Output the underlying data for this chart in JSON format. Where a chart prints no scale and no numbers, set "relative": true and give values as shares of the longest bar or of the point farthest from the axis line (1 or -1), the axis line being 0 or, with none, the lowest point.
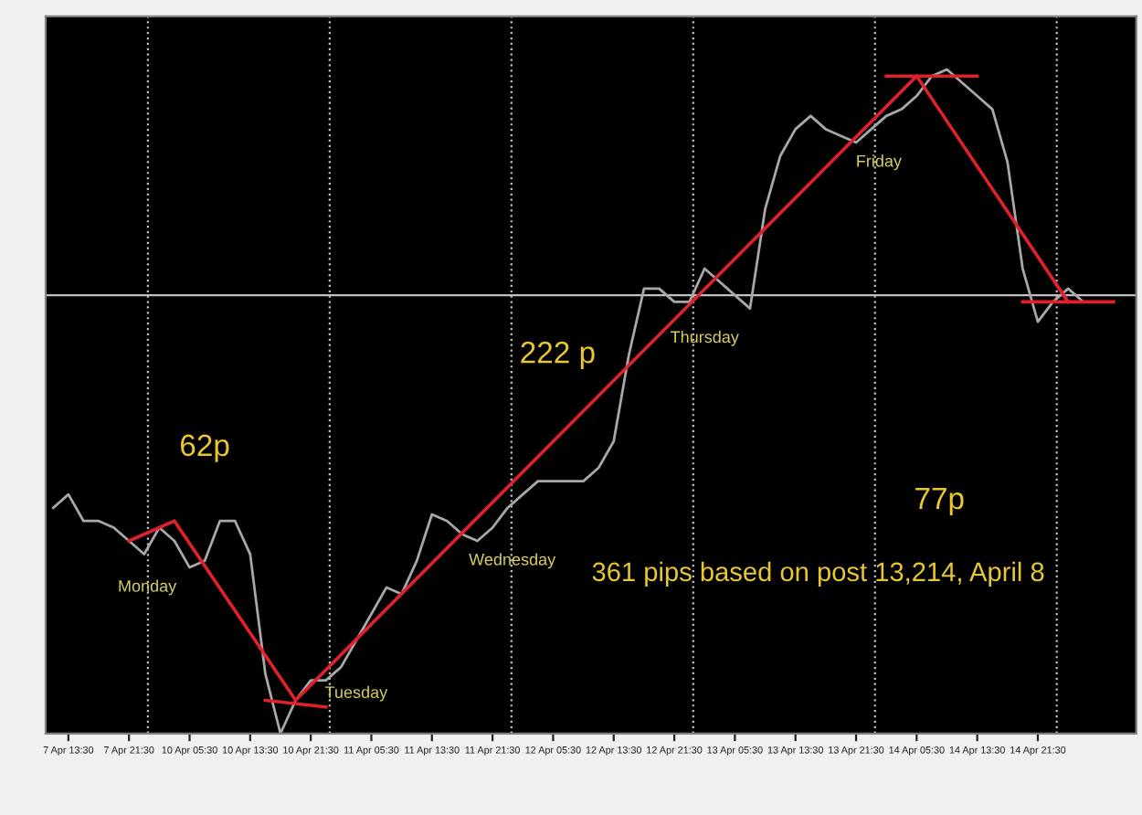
{
  "chart_data": {
    "type": "line",
    "relative": true,
    "tick_labels": "x",
    "grid": false,
    "legend": false,
    "marker": "none",
    "line_style": "solid",
    "categories": [
      null,
      "7 Apr 13:30",
      null,
      null,
      null,
      "7 Apr 21:30",
      null,
      null,
      null,
      "10 Apr 05:30",
      null,
      null,
      null,
      "10 Apr 13:30",
      null,
      null,
      null,
      "10 Apr 21:30",
      null,
      null,
      null,
      "11 Apr 05:30",
      null,
      null,
      null,
      "11 Apr 13:30",
      null,
      null,
      null,
      "11 Apr 21:30",
      null,
      null,
      null,
      "12 Apr 05:30",
      null,
      null,
      null,
      "12 Apr 13:30",
      null,
      null,
      null,
      "12 Apr 21:30",
      null,
      null,
      null,
      "13 Apr 05:30",
      null,
      null,
      null,
      "13 Apr 13:30",
      null,
      null,
      null,
      "13 Apr 21:30",
      null,
      null,
      null,
      "14 Apr 05:30",
      null,
      null,
      null,
      "14 Apr 13:30",
      null,
      null,
      null,
      "14 Apr 21:30",
      null,
      null,
      null,
      null,
      null,
      null
    ],
    "series": [
      {
        "color": "#a8a8a8",
        "values": [
          0.34,
          0.36,
          0.32,
          0.32,
          0.31,
          0.29,
          0.27,
          0.31,
          0.29,
          0.25,
          0.26,
          0.32,
          0.32,
          0.27,
          0.09,
          0.0,
          0.05,
          0.08,
          0.08,
          0.1,
          0.14,
          0.18,
          0.22,
          0.21,
          0.26,
          0.33,
          0.32,
          0.3,
          0.29,
          0.31,
          0.34,
          0.36,
          0.38,
          0.38,
          0.38,
          0.38,
          0.4,
          0.44,
          0.57,
          0.67,
          0.67,
          0.65,
          0.65,
          0.7,
          0.68,
          0.66,
          0.64,
          0.79,
          0.87,
          0.91,
          0.93,
          0.91,
          0.9,
          0.89,
          0.91,
          0.93,
          0.94,
          0.96,
          0.99,
          1.0,
          0.98,
          0.96,
          0.94,
          0.86,
          0.7,
          0.62,
          0.65,
          0.67,
          0.65,
          null,
          null,
          null
        ]
      },
      {
        "color": "#e0202a",
        "values": [
          null,
          null,
          null,
          null,
          null,
          0.29,
          null,
          null,
          0.32,
          null,
          null,
          null,
          null,
          null,
          null,
          null,
          0.05,
          null,
          null,
          null,
          null,
          null,
          null,
          null,
          null,
          null,
          null,
          null,
          null,
          null,
          null,
          null,
          null,
          null,
          null,
          null,
          null,
          null,
          null,
          null,
          null,
          null,
          null,
          null,
          null,
          null,
          null,
          null,
          null,
          null,
          null,
          null,
          null,
          null,
          null,
          null,
          null,
          0.99,
          null,
          null,
          null,
          null,
          null,
          null,
          null,
          null,
          null,
          0.65,
          null,
          null,
          null,
          null
        ]
      },
      {
        "color": "#e0202a",
        "values": [
          null,
          null,
          null,
          null,
          null,
          null,
          null,
          null,
          null,
          null,
          null,
          null,
          null,
          null,
          0.05,
          null,
          null,
          null,
          0.04,
          null,
          null,
          null,
          null,
          null,
          null,
          null,
          null,
          null,
          null,
          null,
          null,
          null,
          null,
          null,
          null,
          null,
          null,
          null,
          null,
          null,
          null,
          null,
          null,
          null,
          null,
          null,
          null,
          null,
          null,
          null,
          null,
          null,
          null,
          null,
          null,
          null,
          null,
          null,
          null,
          null,
          null,
          null,
          null,
          null,
          null,
          null,
          null,
          null,
          null,
          null,
          null,
          null
        ]
      },
      {
        "color": "#e0202a",
        "values": [
          null,
          null,
          null,
          null,
          null,
          null,
          null,
          null,
          null,
          null,
          null,
          null,
          null,
          null,
          null,
          null,
          null,
          null,
          null,
          null,
          null,
          null,
          null,
          null,
          null,
          null,
          null,
          null,
          null,
          null,
          null,
          null,
          null,
          null,
          null,
          null,
          null,
          null,
          null,
          null,
          null,
          null,
          null,
          null,
          null,
          null,
          null,
          null,
          null,
          null,
          null,
          null,
          null,
          null,
          null,
          0.99,
          null,
          null,
          null,
          null,
          null,
          0.99,
          null,
          null,
          null,
          null,
          null,
          null,
          null,
          null,
          null,
          null
        ]
      },
      {
        "color": "#e0202a",
        "values": [
          null,
          null,
          null,
          null,
          null,
          null,
          null,
          null,
          null,
          null,
          null,
          null,
          null,
          null,
          null,
          null,
          null,
          null,
          null,
          null,
          null,
          null,
          null,
          null,
          null,
          null,
          null,
          null,
          null,
          null,
          null,
          null,
          null,
          null,
          null,
          null,
          null,
          null,
          null,
          null,
          null,
          null,
          null,
          null,
          null,
          null,
          null,
          null,
          null,
          null,
          null,
          null,
          null,
          null,
          null,
          null,
          null,
          null,
          null,
          null,
          null,
          null,
          null,
          null,
          0.65,
          null,
          null,
          null,
          null,
          null,
          0.65,
          null
        ]
      }
    ],
    "ref_lines": [
      {
        "axis": "y",
        "value": 0.66,
        "color": "#c0c0c0",
        "line_style": "solid"
      }
    ],
    "annotations": [
      "Monday",
      "Tuesday",
      "Wednesday",
      "Thursday",
      "Friday",
      "62p",
      "222 p",
      "77p",
      "361 pips based on post 13,214, April 8"
    ]
  }
}
